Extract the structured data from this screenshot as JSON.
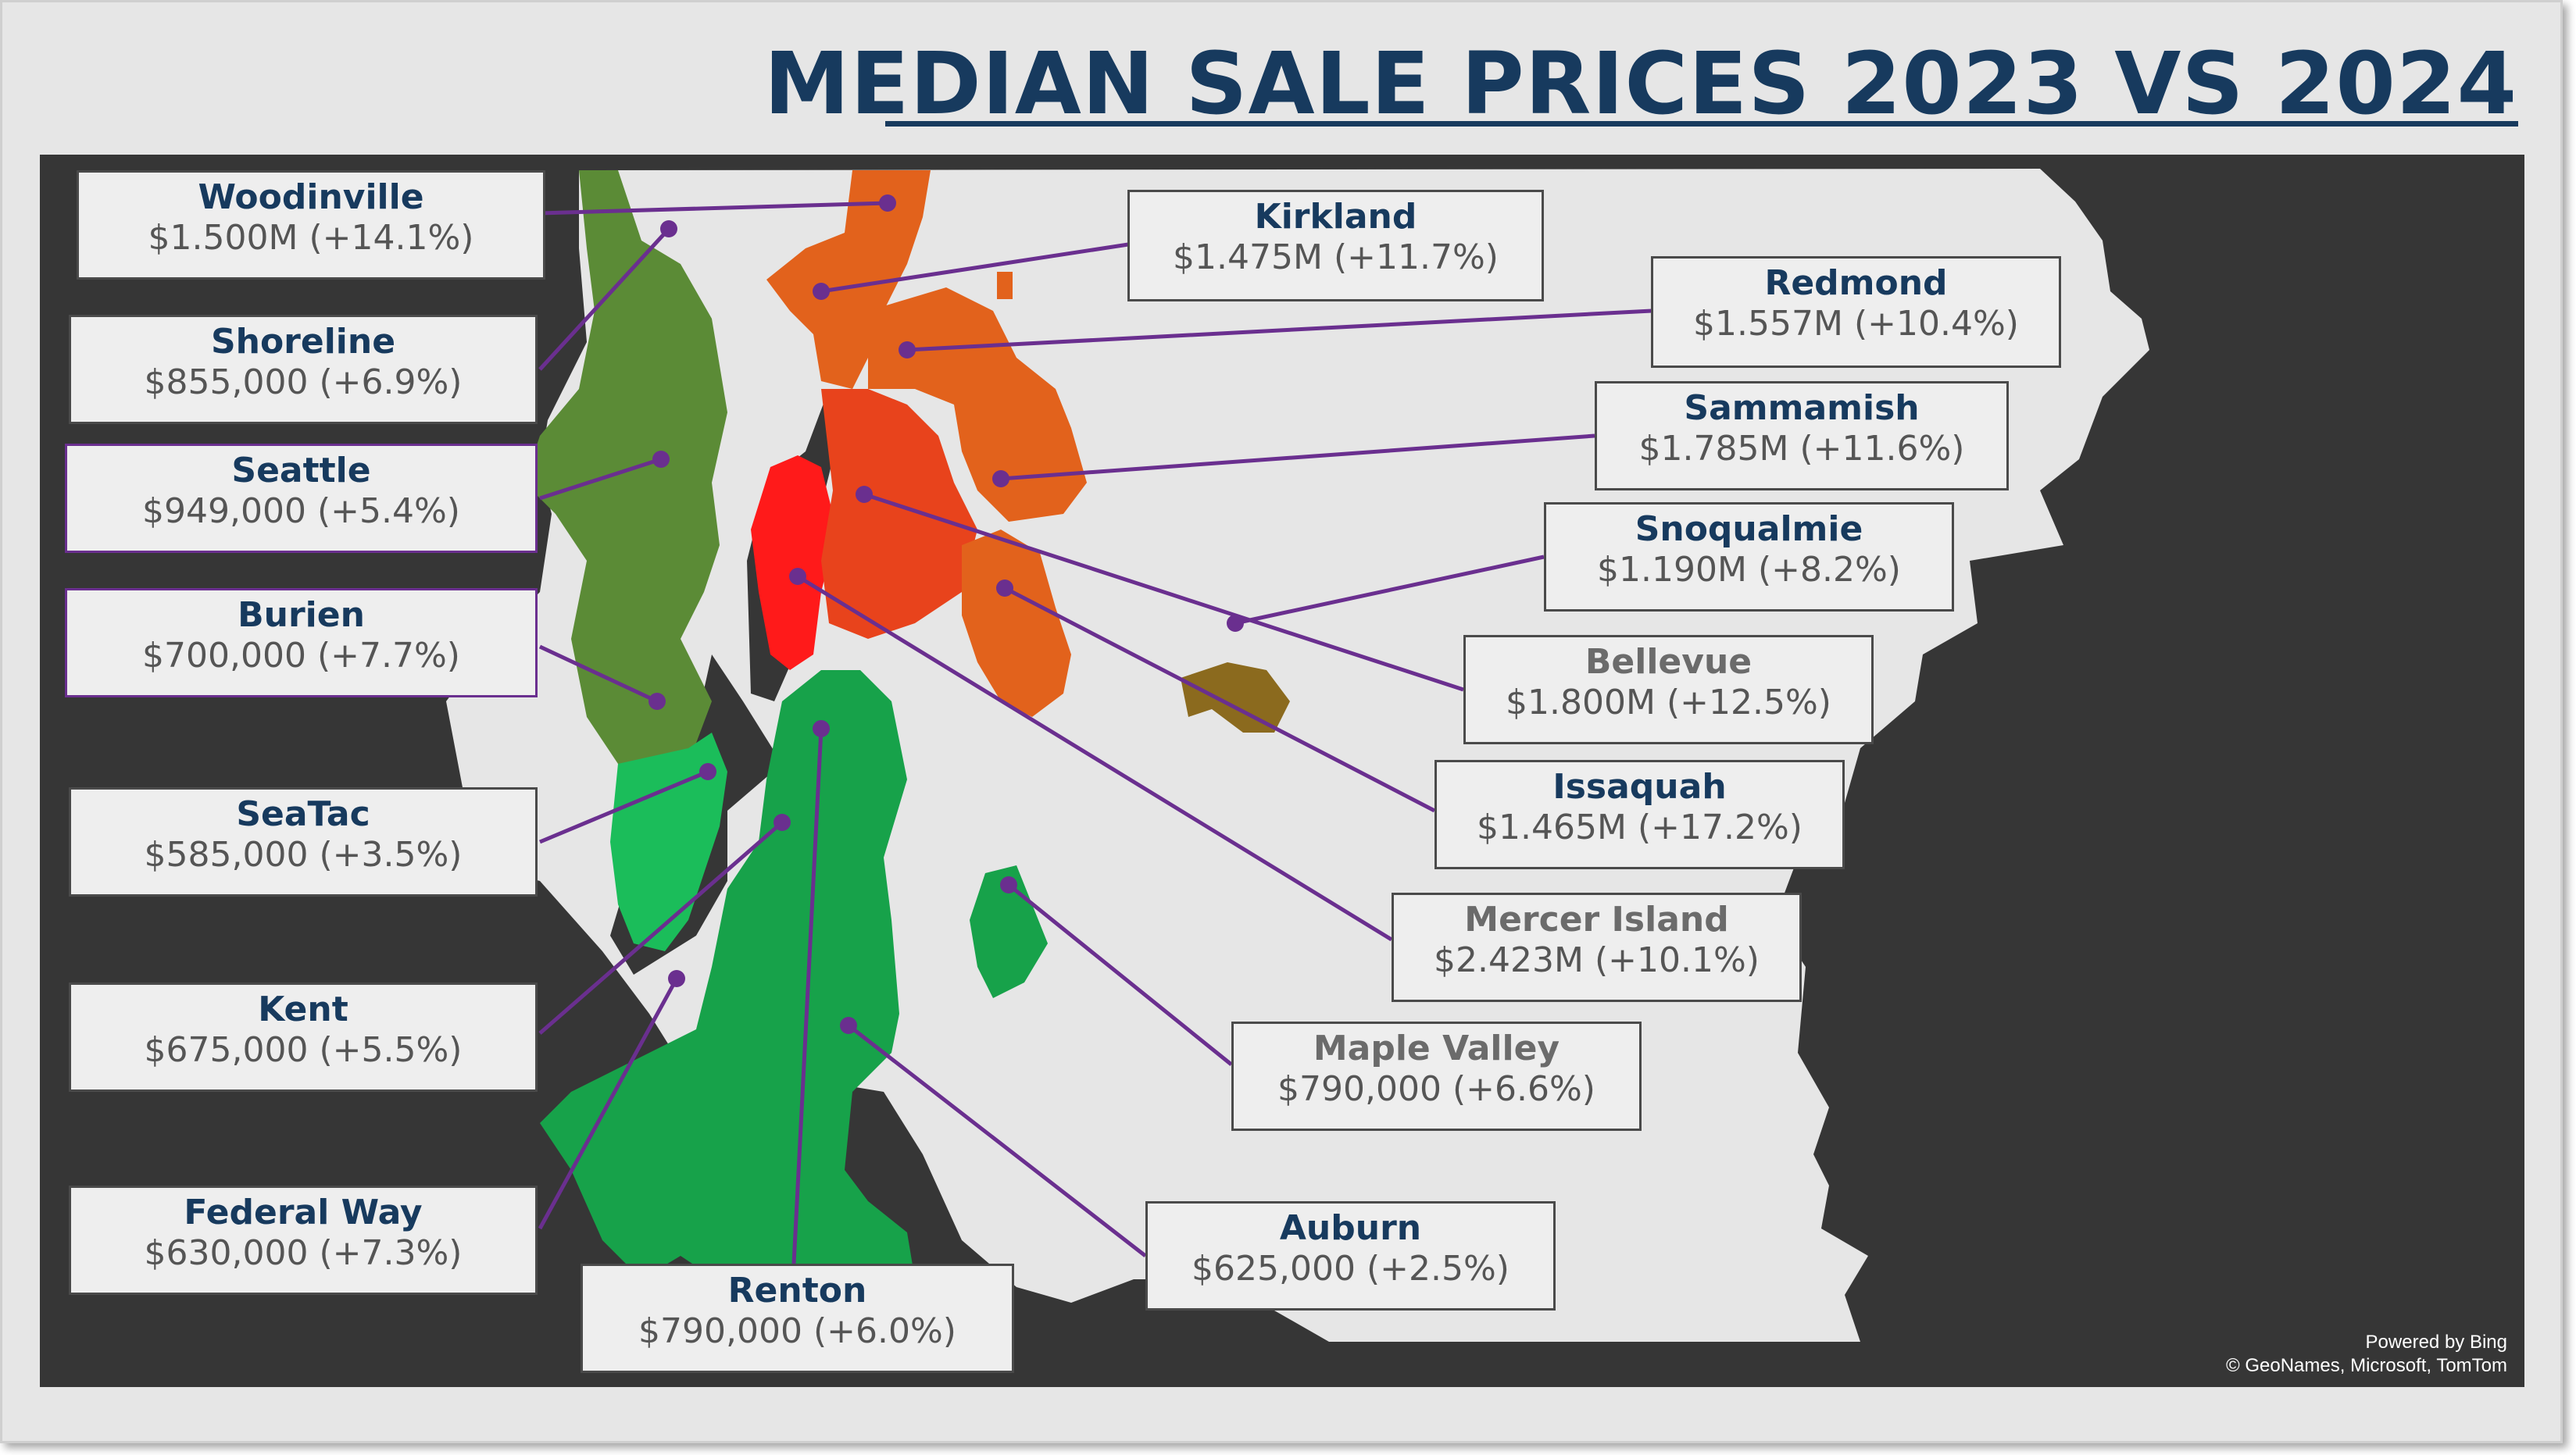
{
  "title": "MEDIAN SALE PRICES 2023 VS 2024",
  "colors": {
    "title": "#173a5e",
    "name_default": "#173a5e",
    "name_muted": "#6b6b6b",
    "price": "#555555",
    "leader": "#6a2f8f",
    "map_land": "#e6e6e6",
    "map_water": "#363636",
    "region_orange": "#e2621c",
    "region_redorange": "#e8431c",
    "region_red": "#ff1a1a",
    "region_olive": "#5b8b36",
    "region_green": "#17a24a",
    "region_brightgreen": "#1bbd5a",
    "region_brown": "#8b6a1e"
  },
  "cities": [
    {
      "name": "Woodinville",
      "price": "$1.500M (+14.1%)",
      "name_color": "#173a5e"
    },
    {
      "name": "Shoreline",
      "price": "$855,000 (+6.9%)",
      "name_color": "#173a5e"
    },
    {
      "name": "Seattle",
      "price": "$949,000 (+5.4%)",
      "name_color": "#173a5e"
    },
    {
      "name": "Burien",
      "price": "$700,000 (+7.7%)",
      "name_color": "#173a5e"
    },
    {
      "name": "SeaTac",
      "price": "$585,000 (+3.5%)",
      "name_color": "#173a5e"
    },
    {
      "name": "Kent",
      "price": "$675,000 (+5.5%)",
      "name_color": "#173a5e"
    },
    {
      "name": "Federal Way",
      "price": "$630,000 (+7.3%)",
      "name_color": "#173a5e"
    },
    {
      "name": "Renton",
      "price": "$790,000 (+6.0%)",
      "name_color": "#173a5e"
    },
    {
      "name": "Kirkland",
      "price": "$1.475M (+11.7%)",
      "name_color": "#173a5e"
    },
    {
      "name": "Redmond",
      "price": "$1.557M (+10.4%)",
      "name_color": "#173a5e"
    },
    {
      "name": "Sammamish",
      "price": "$1.785M (+11.6%)",
      "name_color": "#173a5e"
    },
    {
      "name": "Snoqualmie",
      "price": "$1.190M (+8.2%)",
      "name_color": "#173a5e"
    },
    {
      "name": "Bellevue",
      "price": "$1.800M (+12.5%)",
      "name_color": "#6b6b6b"
    },
    {
      "name": "Issaquah",
      "price": "$1.465M (+17.2%)",
      "name_color": "#173a5e"
    },
    {
      "name": "Mercer Island",
      "price": "$2.423M (+10.1%)",
      "name_color": "#6b6b6b"
    },
    {
      "name": "Maple Valley",
      "price": "$790,000 (+6.6%)",
      "name_color": "#6b6b6b"
    },
    {
      "name": "Auburn",
      "price": "$625,000 (+2.5%)",
      "name_color": "#173a5e"
    }
  ],
  "attribution": {
    "line1": "Powered by Bing",
    "line2": "© GeoNames, Microsoft, TomTom"
  }
}
